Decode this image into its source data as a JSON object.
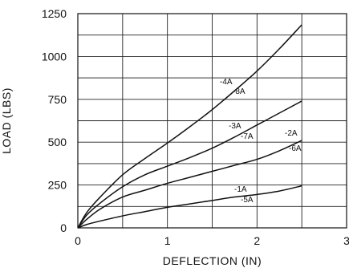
{
  "chart_data": {
    "type": "line",
    "title": "",
    "xlabel": "DEFLECTION (IN)",
    "ylabel": "LOAD (LBS)",
    "xlim": [
      0,
      3
    ],
    "ylim": [
      0,
      1250
    ],
    "xticks": [
      0,
      1,
      2,
      3
    ],
    "yticks": [
      0,
      250,
      500,
      750,
      1000,
      1250
    ],
    "grid": true,
    "series": [
      {
        "labels": [
          "-4A",
          "-8A"
        ],
        "x": [
          0,
          0.1,
          0.25,
          0.5,
          0.75,
          1.0,
          1.25,
          1.5,
          1.75,
          2.0,
          2.25,
          2.5
        ],
        "y": [
          0,
          90,
          180,
          310,
          405,
          495,
          590,
          690,
          800,
          915,
          1045,
          1185
        ]
      },
      {
        "labels": [
          "-3A",
          "-7A"
        ],
        "x": [
          0,
          0.1,
          0.25,
          0.5,
          0.75,
          1.0,
          1.25,
          1.5,
          1.75,
          2.0,
          2.25,
          2.5
        ],
        "y": [
          0,
          75,
          145,
          240,
          310,
          360,
          410,
          465,
          530,
          600,
          670,
          740
        ]
      },
      {
        "labels": [
          "-2A",
          "-6A"
        ],
        "x": [
          0,
          0.1,
          0.25,
          0.5,
          0.75,
          1.0,
          1.25,
          1.5,
          1.75,
          2.0,
          2.25,
          2.5
        ],
        "y": [
          0,
          50,
          110,
          180,
          220,
          260,
          295,
          330,
          365,
          400,
          450,
          510
        ]
      },
      {
        "labels": [
          "-1A",
          "-5A"
        ],
        "x": [
          0,
          0.1,
          0.25,
          0.5,
          0.75,
          1.0,
          1.25,
          1.5,
          1.75,
          2.0,
          2.25,
          2.5
        ],
        "y": [
          0,
          20,
          40,
          70,
          95,
          120,
          140,
          160,
          180,
          195,
          215,
          245
        ]
      }
    ]
  }
}
